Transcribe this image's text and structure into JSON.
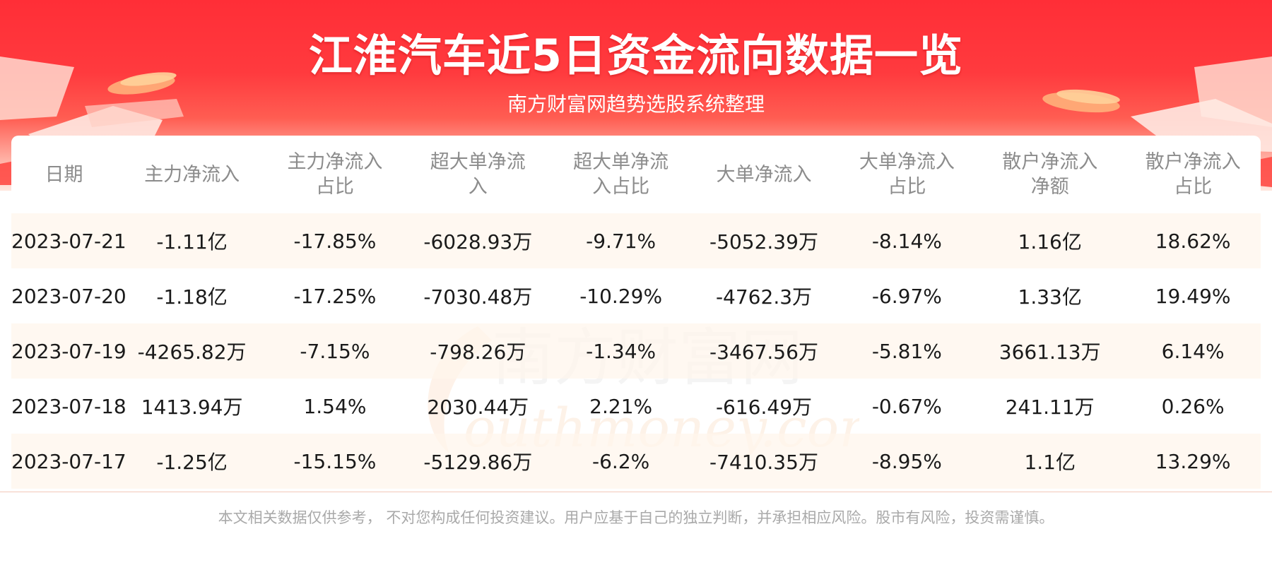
{
  "header": {
    "title": "江淮汽车近5日资金流向数据一览",
    "subtitle": "南方财富网趋势选股系统整理"
  },
  "table": {
    "headers": [
      [
        "日期"
      ],
      [
        "主力净流入"
      ],
      [
        "主力净流入",
        "占比"
      ],
      [
        "超大单净流",
        "入"
      ],
      [
        "超大单净流",
        "入占比"
      ],
      [
        "大单净流入"
      ],
      [
        "大单净流入",
        "占比"
      ],
      [
        "散户净流入",
        "净额"
      ],
      [
        "散户净流入",
        "占比"
      ]
    ],
    "rows": [
      [
        "2023-07-21",
        "-1.11亿",
        "-17.85%",
        "-6028.93万",
        "-9.71%",
        "-5052.39万",
        "-8.14%",
        "1.16亿",
        "18.62%"
      ],
      [
        "2023-07-20",
        "-1.18亿",
        "-17.25%",
        "-7030.48万",
        "-10.29%",
        "-4762.3万",
        "-6.97%",
        "1.33亿",
        "19.49%"
      ],
      [
        "2023-07-19",
        "-4265.82万",
        "-7.15%",
        "-798.26万",
        "-1.34%",
        "-3467.56万",
        "-5.81%",
        "3661.13万",
        "6.14%"
      ],
      [
        "2023-07-18",
        "1413.94万",
        "1.54%",
        "2030.44万",
        "2.21%",
        "-616.49万",
        "-0.67%",
        "241.11万",
        "0.26%"
      ],
      [
        "2023-07-17",
        "-1.25亿",
        "-15.15%",
        "-5129.86万",
        "-6.2%",
        "-7410.35万",
        "-8.95%",
        "1.1亿",
        "13.29%"
      ]
    ]
  },
  "watermark": {
    "line1": "南方财富网",
    "line2": "outhmoney.com"
  },
  "footer": {
    "disclaimer": "本文相关数据仅供参考， 不对您构成任何投资建议。用户应基于自己的独立判断，并承担相应风险。股市有风险，投资需谨慎。"
  },
  "colors": {
    "banner_red": "#ff2e37",
    "row_stripe": "#fff6ee",
    "header_text": "#8c8c8c",
    "footer_text": "#a9a9a9"
  }
}
